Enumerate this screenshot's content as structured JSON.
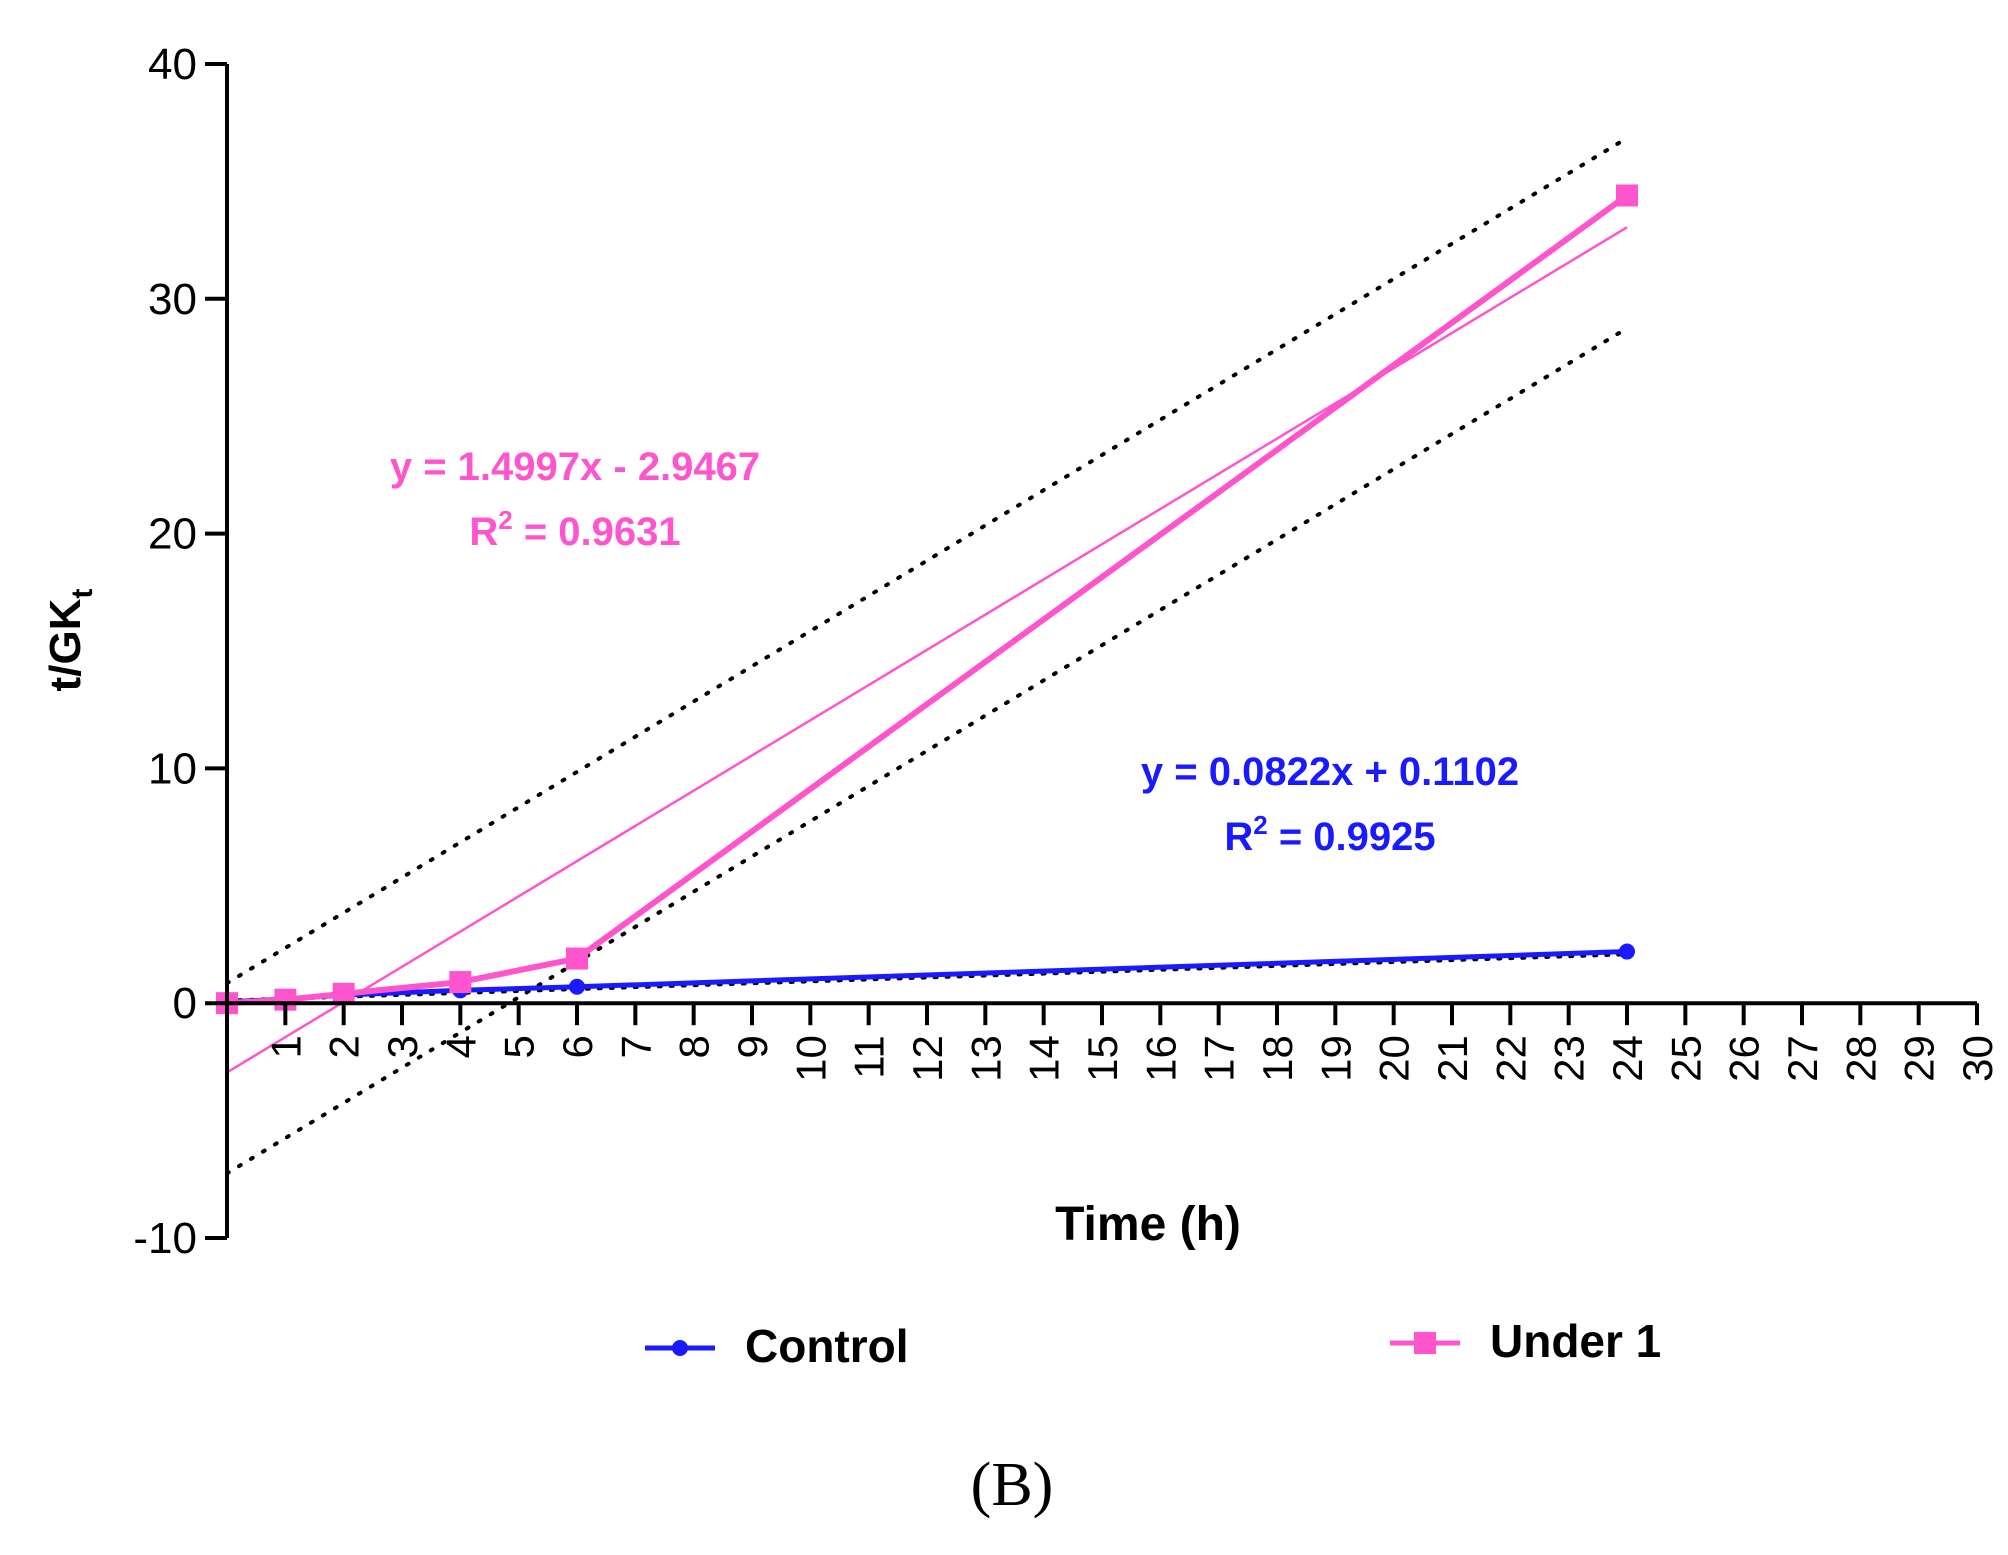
{
  "chart_data": {
    "type": "line",
    "panel_label": "(B)",
    "xlabel": "Time (h)",
    "ylabel_main": "t/GK",
    "ylabel_sub": "t",
    "xlim": [
      0,
      30
    ],
    "ylim": [
      -10,
      40
    ],
    "x_ticks": [
      "1",
      "2",
      "3",
      "4",
      "5",
      "6",
      "7",
      "8",
      "9",
      "10",
      "11",
      "12",
      "13",
      "14",
      "15",
      "16",
      "17",
      "18",
      "19",
      "20",
      "21",
      "22",
      "23",
      "24",
      "25",
      "26",
      "27",
      "28",
      "29",
      "30"
    ],
    "y_ticks": [
      "-10",
      "0",
      "10",
      "20",
      "30",
      "40"
    ],
    "grid": false,
    "legend_position": "bottom",
    "series": [
      {
        "name": "Control",
        "color": "#1a1aff",
        "marker": "circle",
        "x": [
          0,
          1,
          2,
          4,
          6,
          24
        ],
        "y": [
          0.05,
          0.18,
          0.35,
          0.55,
          0.7,
          2.2
        ],
        "equation": "y = 0.0822x + 0.1102",
        "r2_label": "R",
        "r2_sup": "2",
        "r2_value": " = 0.9925",
        "trend": {
          "slope": 0.0822,
          "intercept": 0.1102
        }
      },
      {
        "name": "Under 1",
        "color": "#ff55cc",
        "marker": "square",
        "x": [
          0,
          1,
          2,
          4,
          6,
          24
        ],
        "y": [
          0.0,
          0.15,
          0.4,
          0.9,
          1.9,
          34.4
        ],
        "equation": "y = 1.4997x - 2.9467",
        "r2_label": "R",
        "r2_sup": "2",
        "r2_value": " = 0.9631",
        "trend": {
          "slope": 1.4997,
          "intercept": -2.9467
        },
        "confidence_band": {
          "upper_offset": 3.8,
          "lower_offset": -4.3
        }
      }
    ]
  }
}
